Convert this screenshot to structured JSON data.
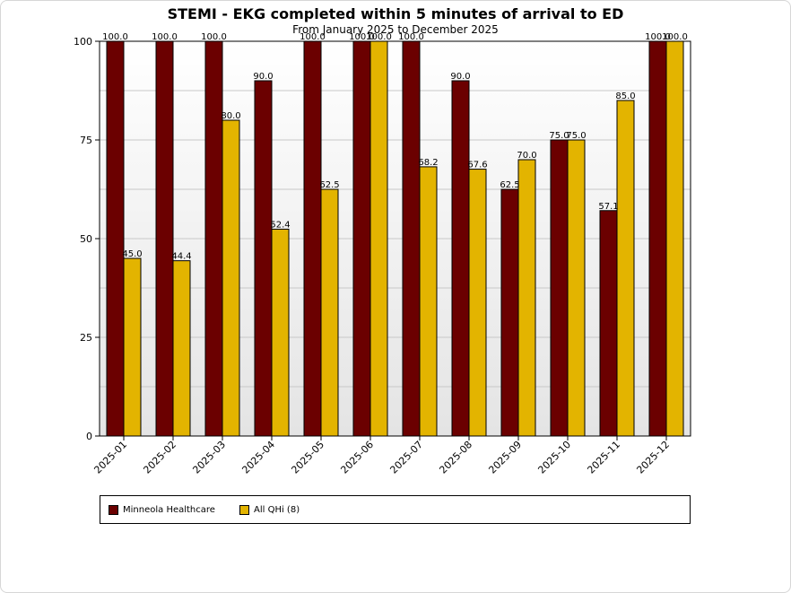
{
  "chart_data": {
    "type": "bar",
    "title": "STEMI - EKG completed within 5 minutes of arrival to ED",
    "subtitle": "From January 2025 to December 2025",
    "xlabel": "",
    "ylabel": "",
    "ylim": [
      0,
      100
    ],
    "yticks": [
      "0",
      "25",
      "50",
      "75",
      "100"
    ],
    "grid": true,
    "legend_position": "bottom",
    "categories": [
      "2025-01",
      "2025-02",
      "2025-03",
      "2025-04",
      "2025-05",
      "2025-06",
      "2025-07",
      "2025-08",
      "2025-09",
      "2025-10",
      "2025-11",
      "2025-12"
    ],
    "series": [
      {
        "name": "Minneola Healthcare",
        "color": "#6b0000",
        "values": [
          100.0,
          100.0,
          100.0,
          90.0,
          100.0,
          100.0,
          100.0,
          90.0,
          62.5,
          75.0,
          57.1,
          100.0
        ],
        "labels": [
          "100.0",
          "100.0",
          "100.0",
          "90.0",
          "100.0",
          "100.0",
          "100.0",
          "90.0",
          "62.5",
          "75.0",
          "57.1",
          "100.0"
        ]
      },
      {
        "name": "All QHi (8)",
        "color": "#e3b400",
        "values": [
          45.0,
          44.4,
          80.0,
          52.4,
          62.5,
          100.0,
          68.2,
          67.6,
          70.0,
          75.0,
          85.0,
          100.0
        ],
        "labels": [
          "45.0",
          "44.4",
          "80.0",
          "52.4",
          "62.5",
          "100.0",
          "68.2",
          "67.6",
          "70.0",
          "75.0",
          "85.0",
          "100.0"
        ]
      }
    ]
  }
}
